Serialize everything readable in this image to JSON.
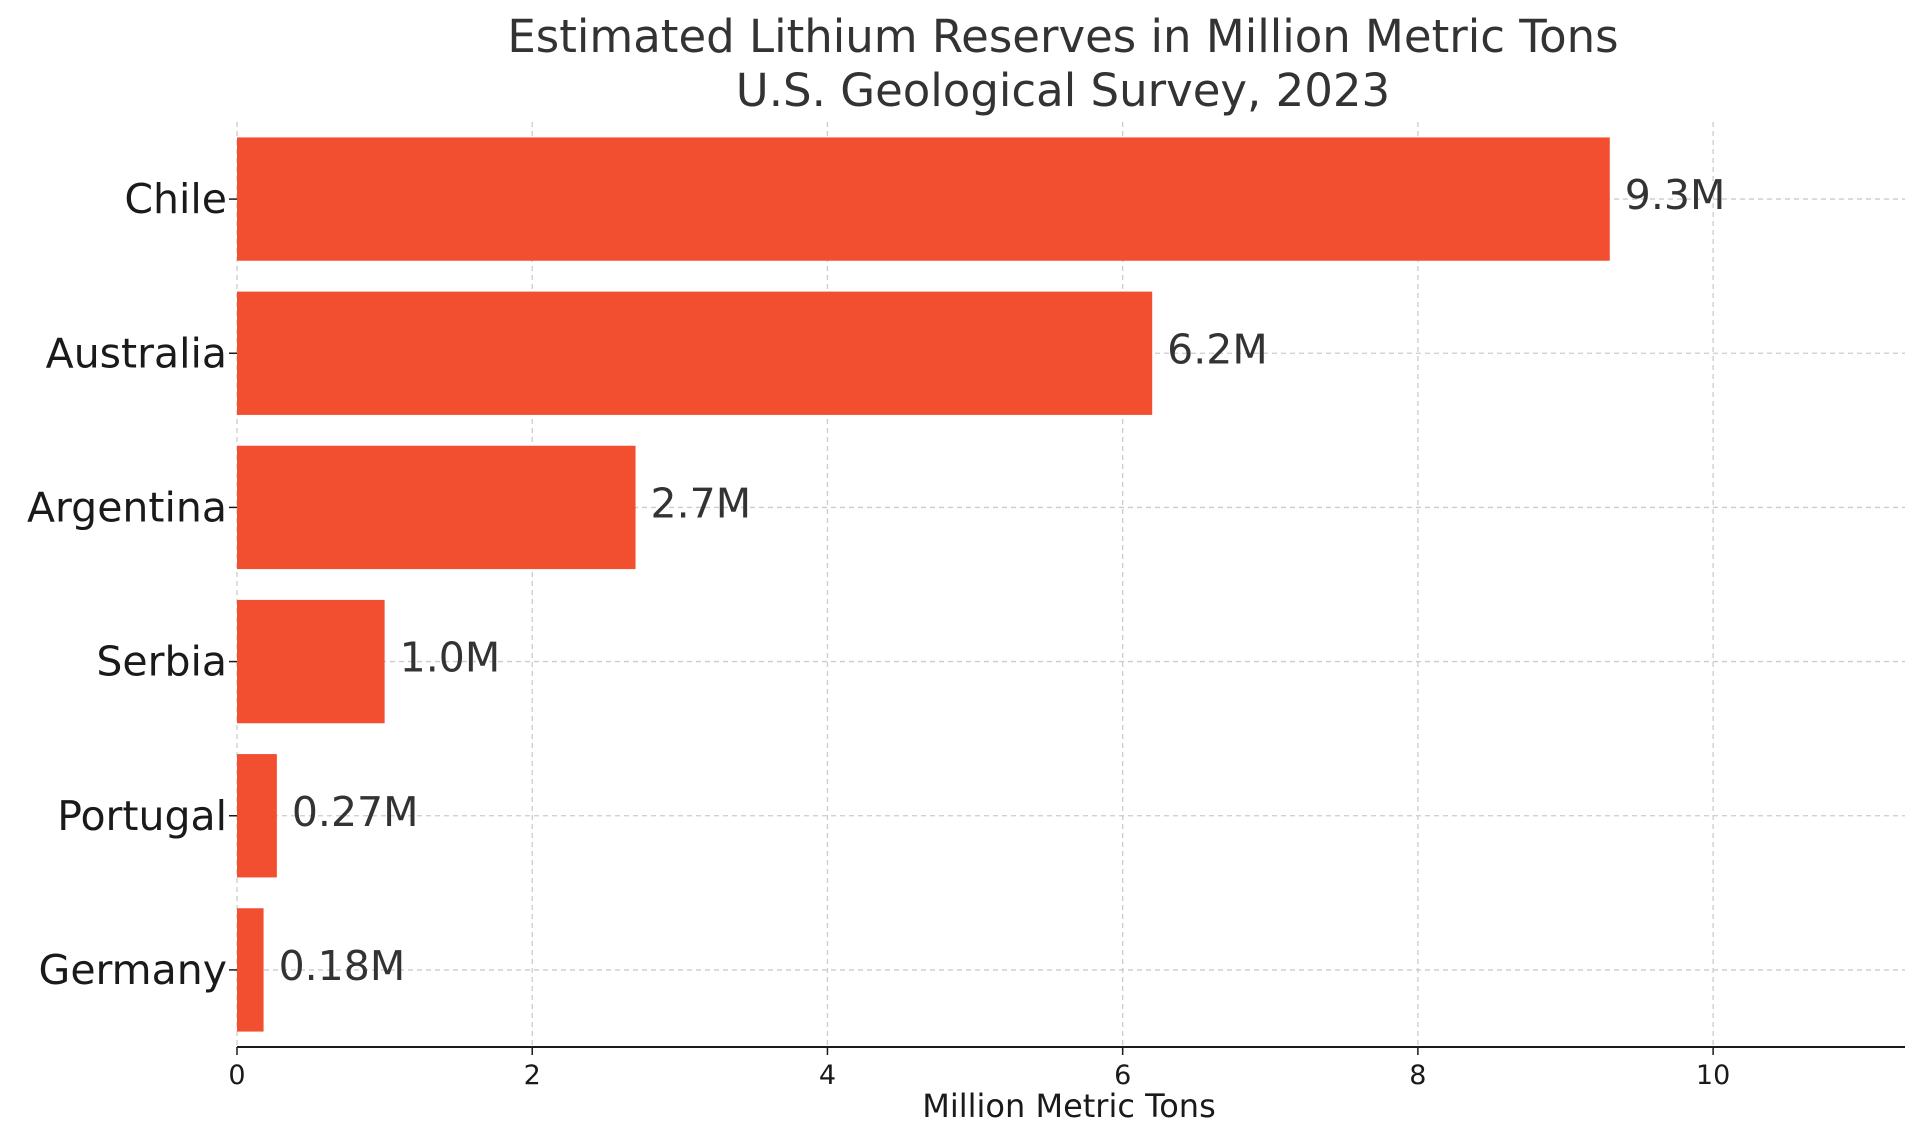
{
  "chart_data": {
    "type": "bar",
    "orientation": "horizontal",
    "title": "Estimated Lithium Reserves in Million Metric Tons",
    "subtitle": "U.S. Geological Survey, 2023",
    "categories": [
      "Chile",
      "Australia",
      "Argentina",
      "Serbia",
      "Portugal",
      "Germany"
    ],
    "values": [
      9.3,
      6.2,
      2.7,
      1.0,
      0.27,
      0.18
    ],
    "value_labels": [
      "9.3M",
      "6.2M",
      "2.7M",
      "1.0M",
      "0.27M",
      "0.18M"
    ],
    "xlabel": "Million Metric Tons",
    "ylabel": "",
    "xlim": [
      0,
      11.3
    ],
    "xticks": [
      0,
      2,
      4,
      6,
      8,
      10
    ],
    "xtick_labels": [
      "0",
      "2",
      "4",
      "6",
      "8",
      "10"
    ],
    "grid": true,
    "grid_style": "dashed",
    "bar_color": "#f24e30",
    "legend": "none"
  }
}
